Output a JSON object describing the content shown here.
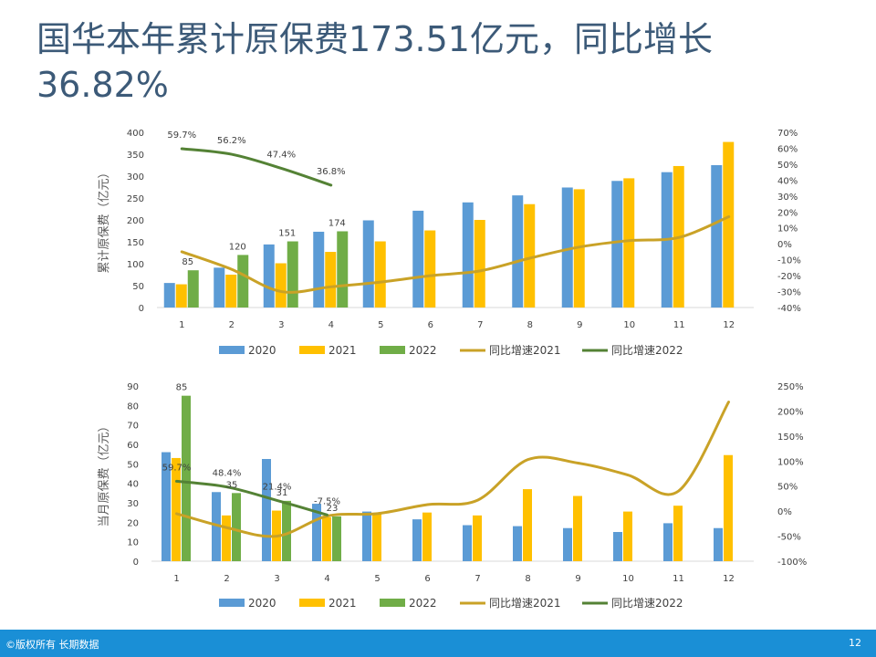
{
  "title": "国华本年累计原保费173.51亿元，同比增长36.82%",
  "footer": {
    "copyright": "©版权所有 长期数据",
    "page": "12"
  },
  "colors": {
    "s2020": "#5b9bd5",
    "s2021": "#ffc000",
    "s2022": "#70ad47",
    "g2021": "#c9a227",
    "g2022": "#548235"
  },
  "chart_data": [
    {
      "type": "bar",
      "ylabel": "累计原保费（亿元）",
      "categories": [
        "1",
        "2",
        "3",
        "4",
        "5",
        "6",
        "7",
        "8",
        "9",
        "10",
        "11",
        "12"
      ],
      "ylim": [
        0,
        400
      ],
      "yticks": [
        0,
        50,
        100,
        150,
        200,
        250,
        300,
        350,
        400
      ],
      "y2lim": [
        -0.4,
        0.7
      ],
      "y2ticks": [
        "-40%",
        "-30%",
        "-20%",
        "-10%",
        "0%",
        "10%",
        "20%",
        "30%",
        "40%",
        "50%",
        "60%",
        "70%"
      ],
      "series": [
        {
          "name": "2020",
          "type": "bar",
          "values": [
            56,
            91,
            144,
            173,
            199,
            221,
            240,
            256,
            274,
            289,
            309,
            325
          ]
        },
        {
          "name": "2021",
          "type": "bar",
          "values": [
            53,
            75,
            101,
            127,
            151,
            176,
            200,
            236,
            270,
            295,
            323,
            378
          ]
        },
        {
          "name": "2022",
          "type": "bar",
          "values": [
            85,
            120,
            151,
            174,
            null,
            null,
            null,
            null,
            null,
            null,
            null,
            null
          ]
        },
        {
          "name": "同比增速2021",
          "type": "line",
          "axis": "y2",
          "values": [
            -0.05,
            -0.16,
            -0.3,
            -0.27,
            -0.24,
            -0.2,
            -0.17,
            -0.09,
            -0.02,
            0.02,
            0.04,
            0.17
          ]
        },
        {
          "name": "同比增速2022",
          "type": "line",
          "axis": "y2",
          "values": [
            0.597,
            0.562,
            0.474,
            0.368,
            null,
            null,
            null,
            null,
            null,
            null,
            null,
            null
          ]
        }
      ],
      "data_labels": {
        "2022": [
          "85",
          "120",
          "151",
          "174"
        ],
        "同比增速2022": [
          "59.7%",
          "56.2%",
          "47.4%",
          "36.8%"
        ]
      },
      "legend": "bottom"
    },
    {
      "type": "bar",
      "ylabel": "当月原保费（亿元）",
      "categories": [
        "1",
        "2",
        "3",
        "4",
        "5",
        "6",
        "7",
        "8",
        "9",
        "10",
        "11",
        "12"
      ],
      "ylim": [
        0,
        90
      ],
      "yticks": [
        0,
        10,
        20,
        30,
        40,
        50,
        60,
        70,
        80,
        90
      ],
      "y2lim": [
        -1.0,
        2.5
      ],
      "y2ticks": [
        "-100%",
        "-50%",
        "0%",
        "50%",
        "100%",
        "150%",
        "200%",
        "250%"
      ],
      "series": [
        {
          "name": "2020",
          "type": "bar",
          "values": [
            56,
            35.5,
            52.5,
            29.5,
            25.5,
            21.5,
            18.5,
            18,
            17,
            15,
            19.5,
            17
          ]
        },
        {
          "name": "2021",
          "type": "bar",
          "values": [
            53,
            23.5,
            26,
            22.5,
            24.5,
            25,
            23.5,
            37,
            33.5,
            25.5,
            28.5,
            54.5
          ]
        },
        {
          "name": "2022",
          "type": "bar",
          "values": [
            85,
            35,
            31,
            23,
            null,
            null,
            null,
            null,
            null,
            null,
            null,
            null
          ]
        },
        {
          "name": "同比增速2021",
          "type": "line",
          "axis": "y2",
          "values": [
            -0.05,
            -0.33,
            -0.5,
            -0.1,
            -0.05,
            0.13,
            0.22,
            1.03,
            0.96,
            0.72,
            0.4,
            2.18
          ]
        },
        {
          "name": "同比增速2022",
          "type": "line",
          "axis": "y2",
          "values": [
            0.597,
            0.484,
            0.214,
            -0.075,
            null,
            null,
            null,
            null,
            null,
            null,
            null,
            null
          ]
        }
      ],
      "data_labels": {
        "2022": [
          "85",
          "35",
          "31",
          "23"
        ],
        "同比增速2022": [
          "59.7%",
          "48.4%",
          "21.4%",
          "-7.5%"
        ]
      },
      "legend": "bottom"
    }
  ]
}
